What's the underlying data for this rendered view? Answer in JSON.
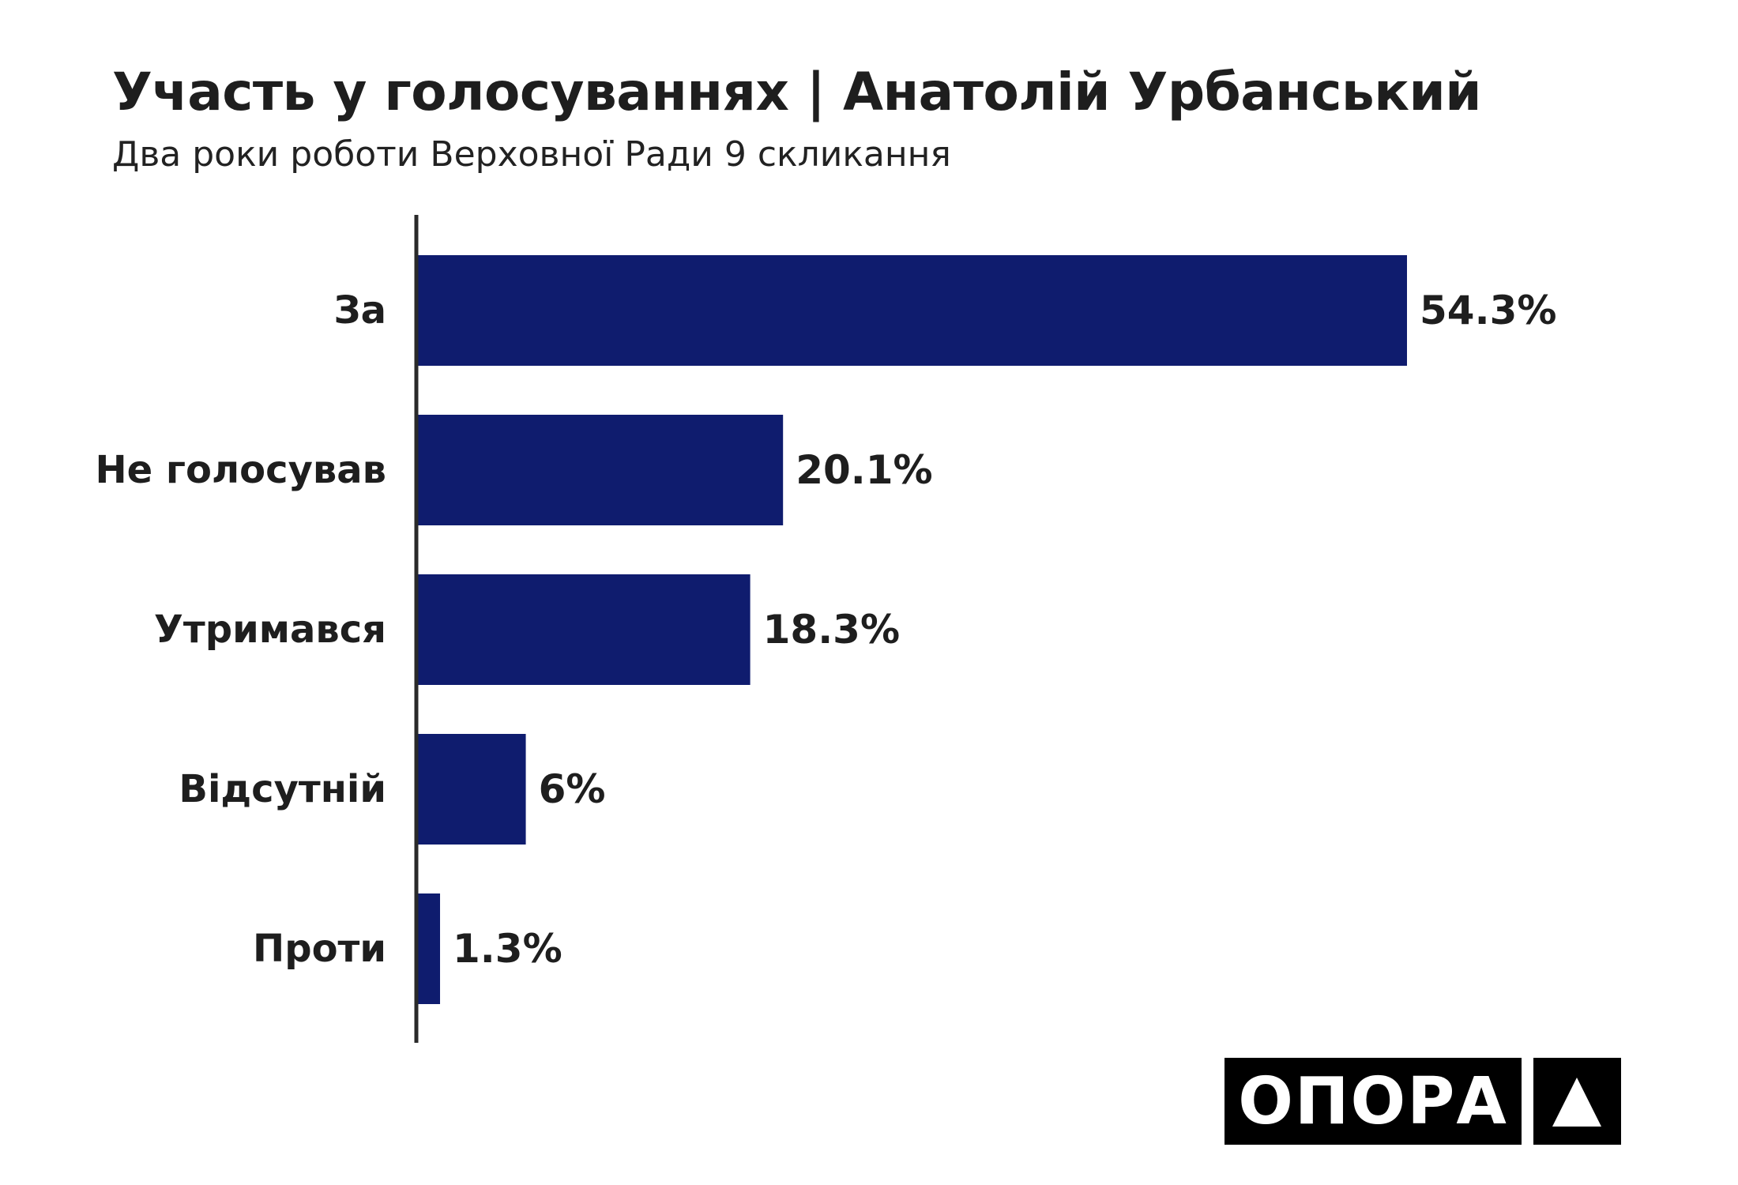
{
  "header": {
    "title": "Участь у голосуваннях | Анатолій Урбанський",
    "subtitle": "Два роки роботи Верховної Ради 9 скликання"
  },
  "logo": {
    "text": "ОПОРА",
    "icon": "triangle-icon"
  },
  "colors": {
    "bar": "#0f1c6e",
    "axis": "#2a2a2a",
    "text": "#1e1e1e",
    "logo_bg": "#000000"
  },
  "chart_data": {
    "type": "bar",
    "orientation": "horizontal",
    "categories": [
      "За",
      "Не голосував",
      "Утримався",
      "Відсутній",
      "Проти"
    ],
    "values": [
      54.3,
      20.1,
      18.3,
      6,
      1.3
    ],
    "value_labels": [
      "54.3%",
      "20.1%",
      "18.3%",
      "6%",
      "1.3%"
    ],
    "unit": "%",
    "xlim": [
      0,
      54.3
    ],
    "grid": false,
    "legend": "none"
  }
}
